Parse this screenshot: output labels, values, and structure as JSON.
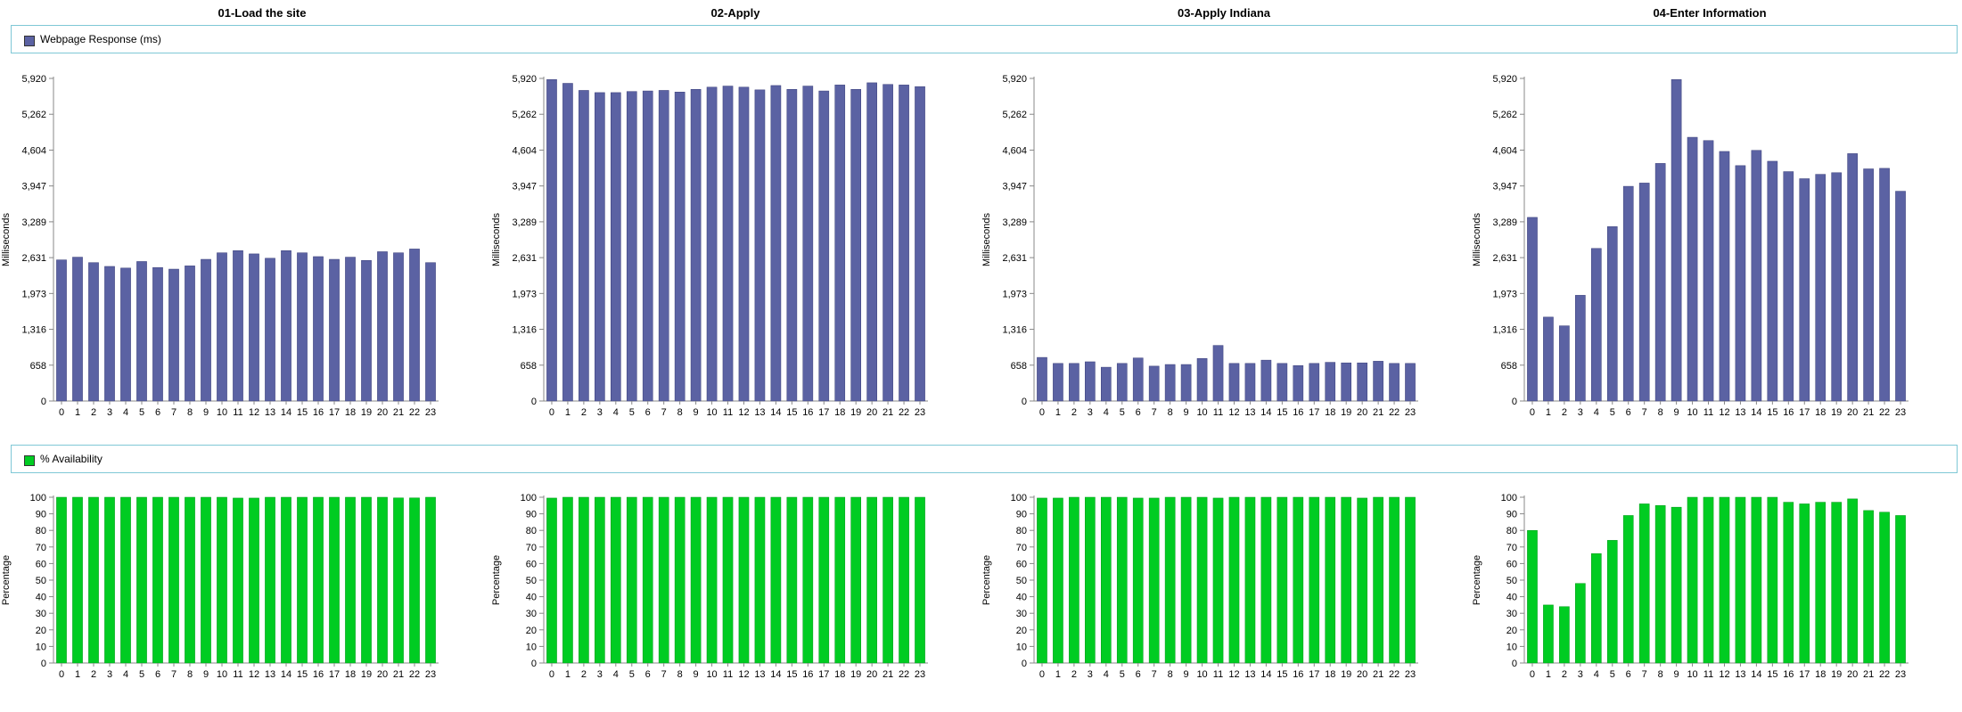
{
  "legends": {
    "response": {
      "label": "Webpage Response (ms)",
      "color": "#5b62a3"
    },
    "availability": {
      "label": "% Availability",
      "color": "#00cc22"
    }
  },
  "chart_data": [
    {
      "panel": 0,
      "type": "bar",
      "title": "01-Load the site",
      "ylabel": "Milliseconds",
      "categories": [
        "0",
        "1",
        "2",
        "3",
        "4",
        "5",
        "6",
        "7",
        "8",
        "9",
        "10",
        "11",
        "12",
        "13",
        "14",
        "15",
        "16",
        "17",
        "18",
        "19",
        "20",
        "21",
        "22",
        "23"
      ],
      "yticks": [
        "0",
        "658",
        "1,316",
        "1,973",
        "2,631",
        "3,289",
        "3,947",
        "4,604",
        "5,262",
        "5,920"
      ],
      "ylim": [
        0,
        5920
      ],
      "series": [
        {
          "name": "Webpage Response (ms)",
          "values": [
            2590,
            2640,
            2540,
            2470,
            2440,
            2560,
            2450,
            2420,
            2480,
            2600,
            2720,
            2760,
            2700,
            2620,
            2760,
            2720,
            2650,
            2600,
            2640,
            2580,
            2740,
            2720,
            2790,
            2540
          ]
        }
      ]
    },
    {
      "panel": 1,
      "type": "bar",
      "title": "02-Apply",
      "ylabel": "Milliseconds",
      "categories": [
        "0",
        "1",
        "2",
        "3",
        "4",
        "5",
        "6",
        "7",
        "8",
        "9",
        "10",
        "11",
        "12",
        "13",
        "14",
        "15",
        "16",
        "17",
        "18",
        "19",
        "20",
        "21",
        "22",
        "23"
      ],
      "yticks": [
        "0",
        "658",
        "1,316",
        "1,973",
        "2,631",
        "3,289",
        "3,947",
        "4,604",
        "5,262",
        "5,920"
      ],
      "ylim": [
        0,
        5920
      ],
      "series": [
        {
          "name": "Webpage Response (ms)",
          "values": [
            5900,
            5830,
            5700,
            5660,
            5660,
            5680,
            5690,
            5700,
            5670,
            5720,
            5760,
            5780,
            5760,
            5710,
            5790,
            5720,
            5780,
            5690,
            5800,
            5720,
            5840,
            5810,
            5800,
            5770
          ]
        }
      ]
    },
    {
      "panel": 2,
      "type": "bar",
      "title": "03-Apply Indiana",
      "ylabel": "Milliseconds",
      "categories": [
        "0",
        "1",
        "2",
        "3",
        "4",
        "5",
        "6",
        "7",
        "8",
        "9",
        "10",
        "11",
        "12",
        "13",
        "14",
        "15",
        "16",
        "17",
        "18",
        "19",
        "20",
        "21",
        "22",
        "23"
      ],
      "yticks": [
        "0",
        "658",
        "1,316",
        "1,973",
        "2,631",
        "3,289",
        "3,947",
        "4,604",
        "5,262",
        "5,920"
      ],
      "ylim": [
        0,
        5920
      ],
      "series": [
        {
          "name": "Webpage Response (ms)",
          "values": [
            800,
            690,
            690,
            720,
            620,
            690,
            790,
            640,
            670,
            670,
            780,
            1020,
            690,
            690,
            750,
            690,
            650,
            690,
            710,
            700,
            700,
            730,
            690,
            690
          ]
        }
      ]
    },
    {
      "panel": 3,
      "type": "bar",
      "title": "04-Enter Information",
      "ylabel": "Milliseconds",
      "categories": [
        "0",
        "1",
        "2",
        "3",
        "4",
        "5",
        "6",
        "7",
        "8",
        "9",
        "10",
        "11",
        "12",
        "13",
        "14",
        "15",
        "16",
        "17",
        "18",
        "19",
        "20",
        "21",
        "22",
        "23"
      ],
      "yticks": [
        "0",
        "658",
        "1,316",
        "1,973",
        "2,631",
        "3,289",
        "3,947",
        "4,604",
        "5,262",
        "5,920"
      ],
      "ylim": [
        0,
        5920
      ],
      "series": [
        {
          "name": "Webpage Response (ms)",
          "values": [
            3370,
            1540,
            1380,
            1940,
            2800,
            3200,
            3940,
            4000,
            4360,
            5900,
            4840,
            4780,
            4580,
            4320,
            4600,
            4400,
            4210,
            4080,
            4160,
            4190,
            4540,
            4260,
            4270,
            3850
          ]
        }
      ]
    },
    {
      "panel": 0,
      "type": "bar",
      "title": "",
      "ylabel": "Percentage",
      "categories": [
        "0",
        "1",
        "2",
        "3",
        "4",
        "5",
        "6",
        "7",
        "8",
        "9",
        "10",
        "11",
        "12",
        "13",
        "14",
        "15",
        "16",
        "17",
        "18",
        "19",
        "20",
        "21",
        "22",
        "23"
      ],
      "yticks": [
        "0",
        "10",
        "20",
        "30",
        "40",
        "50",
        "60",
        "70",
        "80",
        "90",
        "100"
      ],
      "ylim": [
        0,
        100
      ],
      "series": [
        {
          "name": "% Availability",
          "values": [
            100,
            100,
            100,
            100,
            100,
            100,
            100,
            100,
            100,
            100,
            100,
            99.5,
            99.5,
            100,
            100,
            100,
            100,
            100,
            100,
            100,
            100,
            99.6,
            99.6,
            100
          ]
        }
      ]
    },
    {
      "panel": 1,
      "type": "bar",
      "title": "",
      "ylabel": "Percentage",
      "categories": [
        "0",
        "1",
        "2",
        "3",
        "4",
        "5",
        "6",
        "7",
        "8",
        "9",
        "10",
        "11",
        "12",
        "13",
        "14",
        "15",
        "16",
        "17",
        "18",
        "19",
        "20",
        "21",
        "22",
        "23"
      ],
      "yticks": [
        "0",
        "10",
        "20",
        "30",
        "40",
        "50",
        "60",
        "70",
        "80",
        "90",
        "100"
      ],
      "ylim": [
        0,
        100
      ],
      "series": [
        {
          "name": "% Availability",
          "values": [
            99.5,
            100,
            100,
            100,
            100,
            100,
            100,
            100,
            100,
            100,
            100,
            100,
            100,
            100,
            100,
            100,
            100,
            100,
            100,
            100,
            100,
            100,
            100,
            100
          ]
        }
      ]
    },
    {
      "panel": 2,
      "type": "bar",
      "title": "",
      "ylabel": "Percentage",
      "categories": [
        "0",
        "1",
        "2",
        "3",
        "4",
        "5",
        "6",
        "7",
        "8",
        "9",
        "10",
        "11",
        "12",
        "13",
        "14",
        "15",
        "16",
        "17",
        "18",
        "19",
        "20",
        "21",
        "22",
        "23"
      ],
      "yticks": [
        "0",
        "10",
        "20",
        "30",
        "40",
        "50",
        "60",
        "70",
        "80",
        "90",
        "100"
      ],
      "ylim": [
        0,
        100
      ],
      "series": [
        {
          "name": "% Availability",
          "values": [
            99.5,
            99.5,
            100,
            100,
            100,
            100,
            99.5,
            99.5,
            100,
            100,
            100,
            99.5,
            100,
            100,
            100,
            100,
            100,
            100,
            100,
            100,
            99.5,
            100,
            100,
            100
          ]
        }
      ]
    },
    {
      "panel": 3,
      "type": "bar",
      "title": "",
      "ylabel": "Percentage",
      "categories": [
        "0",
        "1",
        "2",
        "3",
        "4",
        "5",
        "6",
        "7",
        "8",
        "9",
        "10",
        "11",
        "12",
        "13",
        "14",
        "15",
        "16",
        "17",
        "18",
        "19",
        "20",
        "21",
        "22",
        "23"
      ],
      "yticks": [
        "0",
        "10",
        "20",
        "30",
        "40",
        "50",
        "60",
        "70",
        "80",
        "90",
        "100"
      ],
      "ylim": [
        0,
        100
      ],
      "series": [
        {
          "name": "% Availability",
          "values": [
            80,
            35,
            34,
            48,
            66,
            74,
            89,
            96,
            95,
            94,
            100,
            100,
            100,
            100,
            100,
            100,
            97,
            96,
            97,
            97,
            99,
            92,
            91,
            89
          ]
        }
      ]
    }
  ]
}
